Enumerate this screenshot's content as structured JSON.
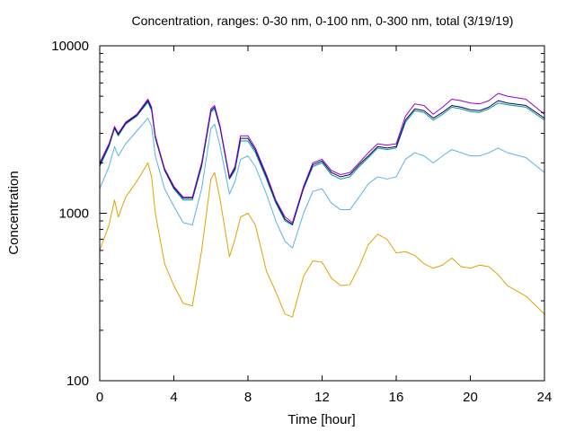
{
  "chart_data": {
    "type": "line",
    "title": "Concentration, ranges: 0-30 nm, 0-100 nm, 0-300 nm, total (3/19/19)",
    "xlabel": "Time [hour]",
    "ylabel": "Concentration",
    "xlim": [
      0,
      24
    ],
    "ylim": [
      100,
      10000
    ],
    "yscale": "log",
    "xticks": [
      0,
      4,
      8,
      12,
      16,
      20,
      24
    ],
    "xtick_labels": [
      "0",
      "4",
      "8",
      "12",
      "16",
      "20",
      "24"
    ],
    "yticks": [
      100,
      1000,
      10000
    ],
    "ytick_labels": [
      "100",
      "1000",
      "10000"
    ],
    "grid": false,
    "legend": "none",
    "series": [
      {
        "color": "#e69f00",
        "x": [
          0,
          0.5,
          0.8,
          1.0,
          1.4,
          2.0,
          2.6,
          2.8,
          3.0,
          3.5,
          4.0,
          4.5,
          5.0,
          5.5,
          6.0,
          6.2,
          6.5,
          7.0,
          7.3,
          7.6,
          8.0,
          8.4,
          9.0,
          9.5,
          10.0,
          10.4,
          11.0,
          11.5,
          12.0,
          12.5,
          13.0,
          13.5,
          14.0,
          14.5,
          15.0,
          15.5,
          16.0,
          16.5,
          17.0,
          17.5,
          18.0,
          18.5,
          19.0,
          19.5,
          20.0,
          20.5,
          21.0,
          21.5,
          22.0,
          23.0,
          24.0
        ],
        "y": [
          600,
          850,
          1200,
          950,
          1250,
          1550,
          2000,
          1650,
          1000,
          500,
          370,
          290,
          280,
          600,
          1600,
          1750,
          1200,
          550,
          700,
          950,
          1000,
          850,
          450,
          340,
          250,
          240,
          420,
          520,
          510,
          410,
          370,
          375,
          480,
          650,
          750,
          700,
          580,
          590,
          560,
          500,
          470,
          490,
          540,
          480,
          470,
          490,
          480,
          430,
          370,
          320,
          250
        ]
      },
      {
        "color": "#56b4e9",
        "x": [
          0,
          0.5,
          0.8,
          1.0,
          1.4,
          2.0,
          2.6,
          2.8,
          3.0,
          3.5,
          4.0,
          4.5,
          5.0,
          5.5,
          6.0,
          6.2,
          6.5,
          7.0,
          7.3,
          7.6,
          8.0,
          8.4,
          9.0,
          9.5,
          10.0,
          10.4,
          11.0,
          11.5,
          12.0,
          12.5,
          13.0,
          13.5,
          14.0,
          14.5,
          15.0,
          15.5,
          16.0,
          16.5,
          17.0,
          17.5,
          18.0,
          18.5,
          19.0,
          19.5,
          20.0,
          20.5,
          21.0,
          21.5,
          22.0,
          23.0,
          24.0
        ],
        "y": [
          1400,
          1900,
          2500,
          2200,
          2600,
          3100,
          3700,
          3300,
          2200,
          1400,
          1100,
          880,
          850,
          1400,
          3200,
          3400,
          2500,
          1300,
          1550,
          2100,
          2200,
          1900,
          1300,
          900,
          680,
          620,
          1000,
          1350,
          1400,
          1150,
          1050,
          1050,
          1250,
          1500,
          1650,
          1600,
          1650,
          2100,
          2300,
          2200,
          2000,
          2200,
          2400,
          2300,
          2200,
          2200,
          2300,
          2450,
          2300,
          2150,
          1750
        ]
      },
      {
        "color": "#009e73",
        "x": [
          0,
          0.5,
          0.8,
          1.0,
          1.4,
          2.0,
          2.6,
          2.8,
          3.0,
          3.5,
          4.0,
          4.5,
          5.0,
          5.5,
          6.0,
          6.2,
          6.5,
          7.0,
          7.3,
          7.6,
          8.0,
          8.4,
          9.0,
          9.5,
          10.0,
          10.4,
          11.0,
          11.5,
          12.0,
          12.5,
          13.0,
          13.5,
          14.0,
          14.5,
          15.0,
          15.5,
          16.0,
          16.5,
          17.0,
          17.5,
          18.0,
          18.5,
          19.0,
          19.5,
          20.0,
          20.5,
          21.0,
          21.5,
          22.0,
          23.0,
          24.0
        ],
        "y": [
          1900,
          2500,
          3200,
          2900,
          3400,
          3800,
          4600,
          4100,
          2800,
          1800,
          1400,
          1200,
          1200,
          1900,
          4000,
          4200,
          3200,
          1600,
          1800,
          2700,
          2700,
          2300,
          1600,
          1150,
          900,
          850,
          1400,
          1900,
          2000,
          1700,
          1600,
          1650,
          1900,
          2150,
          2450,
          2400,
          2450,
          3500,
          4100,
          4000,
          3600,
          3900,
          4300,
          4200,
          4050,
          4000,
          4200,
          4550,
          4450,
          4300,
          3600
        ]
      },
      {
        "color": "#000080",
        "x": [
          0,
          0.5,
          0.8,
          1.0,
          1.4,
          2.0,
          2.6,
          2.8,
          3.0,
          3.5,
          4.0,
          4.5,
          5.0,
          5.5,
          6.0,
          6.2,
          6.5,
          7.0,
          7.3,
          7.6,
          8.0,
          8.4,
          9.0,
          9.5,
          10.0,
          10.4,
          11.0,
          11.5,
          12.0,
          12.5,
          13.0,
          13.5,
          14.0,
          14.5,
          15.0,
          15.5,
          16.0,
          16.5,
          17.0,
          17.5,
          18.0,
          18.5,
          19.0,
          19.5,
          20.0,
          20.5,
          21.0,
          21.5,
          22.0,
          23.0,
          24.0
        ],
        "y": [
          1950,
          2550,
          3250,
          2950,
          3450,
          3850,
          4700,
          4200,
          2850,
          1820,
          1420,
          1230,
          1230,
          1950,
          4100,
          4300,
          3250,
          1620,
          1850,
          2800,
          2800,
          2380,
          1650,
          1180,
          920,
          860,
          1420,
          1950,
          2050,
          1750,
          1650,
          1700,
          1950,
          2200,
          2500,
          2450,
          2500,
          3600,
          4200,
          4100,
          3700,
          4000,
          4400,
          4300,
          4150,
          4100,
          4300,
          4700,
          4550,
          4400,
          3700
        ]
      },
      {
        "color": "#9400d3",
        "x": [
          0,
          0.5,
          0.8,
          1.0,
          1.4,
          2.0,
          2.6,
          2.8,
          3.0,
          3.5,
          4.0,
          4.5,
          5.0,
          5.5,
          6.0,
          6.2,
          6.5,
          7.0,
          7.3,
          7.6,
          8.0,
          8.4,
          9.0,
          9.5,
          10.0,
          10.4,
          11.0,
          11.5,
          12.0,
          12.5,
          13.0,
          13.5,
          14.0,
          14.5,
          15.0,
          15.5,
          16.0,
          16.5,
          17.0,
          17.5,
          18.0,
          18.5,
          19.0,
          19.5,
          20.0,
          20.5,
          21.0,
          21.5,
          22.0,
          23.0,
          24.0
        ],
        "y": [
          2000,
          2600,
          3300,
          3000,
          3500,
          3900,
          4800,
          4300,
          2900,
          1850,
          1450,
          1250,
          1250,
          2000,
          4200,
          4400,
          3300,
          1650,
          1900,
          2900,
          2900,
          2450,
          1700,
          1200,
          950,
          880,
          1450,
          2000,
          2100,
          1800,
          1700,
          1750,
          2000,
          2300,
          2600,
          2550,
          2600,
          3800,
          4500,
          4400,
          3900,
          4300,
          4800,
          4700,
          4550,
          4500,
          4700,
          5200,
          5000,
          4800,
          3900
        ]
      }
    ]
  }
}
